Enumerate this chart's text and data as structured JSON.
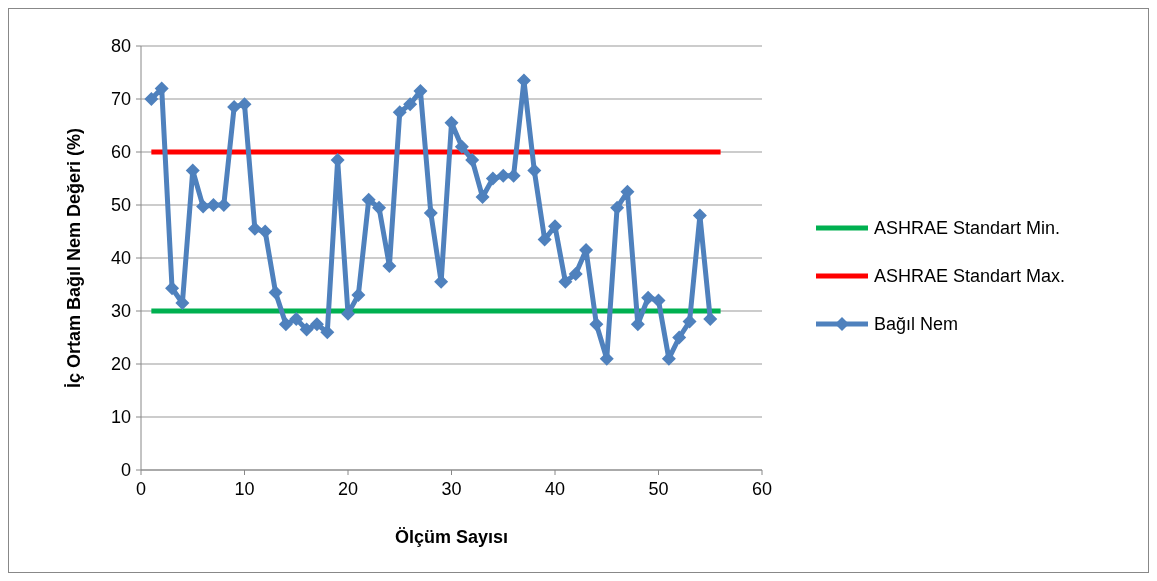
{
  "chart_data": {
    "type": "line",
    "xlabel": "Ölçüm Sayısı",
    "ylabel": "İç Ortam Bağıl Nem Değeri (%)",
    "xlim": [
      0,
      60
    ],
    "xticks": [
      0,
      10,
      20,
      30,
      40,
      50,
      60
    ],
    "ylim": [
      0,
      80
    ],
    "yticks": [
      0,
      10,
      20,
      30,
      40,
      50,
      60,
      70,
      80
    ],
    "grid": "y",
    "legend": "right",
    "series": [
      {
        "name": "ASHRAE Standart Min.",
        "color": "#00b050",
        "marker": "none",
        "x": [
          1,
          56
        ],
        "values": [
          30,
          30
        ]
      },
      {
        "name": "ASHRAE Standart Max.",
        "color": "#ff0000",
        "marker": "none",
        "x": [
          1,
          56
        ],
        "values": [
          60,
          60
        ]
      },
      {
        "name": "Bağıl Nem",
        "color": "#4f81bd",
        "marker": "diamond",
        "x": [
          1,
          2,
          3,
          4,
          5,
          6,
          7,
          8,
          9,
          10,
          11,
          12,
          13,
          14,
          15,
          16,
          17,
          18,
          19,
          20,
          21,
          22,
          23,
          24,
          25,
          26,
          27,
          28,
          29,
          30,
          31,
          32,
          33,
          34,
          35,
          36,
          37,
          38,
          39,
          40,
          41,
          42,
          43,
          44,
          45,
          46,
          47,
          48,
          49,
          50,
          51,
          52,
          53,
          54,
          55
        ],
        "values": [
          70,
          72,
          34.3,
          31.5,
          56.5,
          49.7,
          50,
          50,
          68.5,
          69,
          45.5,
          45,
          33.5,
          27.5,
          28.5,
          26.5,
          27.5,
          26,
          58.5,
          29.5,
          33,
          51,
          49.5,
          38.5,
          67.5,
          69,
          71.5,
          48.5,
          35.5,
          65.5,
          61,
          58.5,
          51.5,
          55,
          55.5,
          55.5,
          73.5,
          56.5,
          43.5,
          46,
          35.5,
          37,
          41.5,
          27.5,
          21,
          49.5,
          52.5,
          27.5,
          32.5,
          32,
          21,
          25,
          28,
          48,
          28.5
        ]
      }
    ]
  }
}
